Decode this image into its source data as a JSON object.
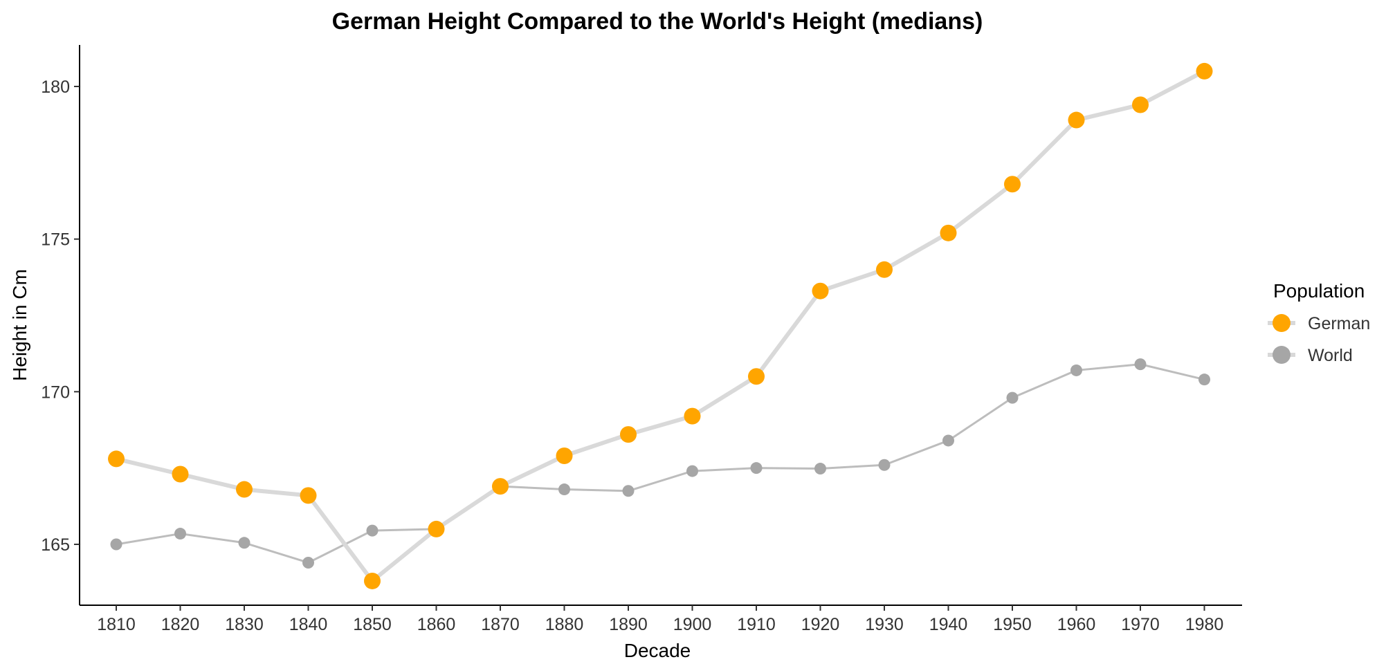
{
  "chart_data": {
    "type": "line",
    "title": "German Height Compared to the World's Height (medians)",
    "xlabel": "Decade",
    "ylabel": "Height in Cm",
    "x": [
      1810,
      1820,
      1830,
      1840,
      1850,
      1860,
      1870,
      1880,
      1890,
      1900,
      1910,
      1920,
      1930,
      1940,
      1950,
      1960,
      1970,
      1980
    ],
    "y_ticks": [
      165,
      170,
      175,
      180
    ],
    "ylim": [
      163,
      181.5
    ],
    "grid": false,
    "legend": {
      "title": "Population",
      "placement": "right"
    },
    "series": [
      {
        "name": "German",
        "point_color": "#FFA500",
        "line_color": "#D9D9D9",
        "values": [
          167.8,
          167.3,
          166.8,
          166.6,
          163.8,
          165.5,
          166.9,
          167.9,
          168.6,
          169.2,
          170.5,
          173.3,
          174.0,
          175.2,
          176.8,
          178.9,
          179.4,
          180.5
        ]
      },
      {
        "name": "World",
        "point_color": "#A6A6A6",
        "line_color": "#BDBDBD",
        "values": [
          165.0,
          165.35,
          165.05,
          164.4,
          165.45,
          165.5,
          166.9,
          166.8,
          166.75,
          167.4,
          167.5,
          167.48,
          167.6,
          168.4,
          169.8,
          170.7,
          170.9,
          170.4
        ]
      }
    ]
  }
}
